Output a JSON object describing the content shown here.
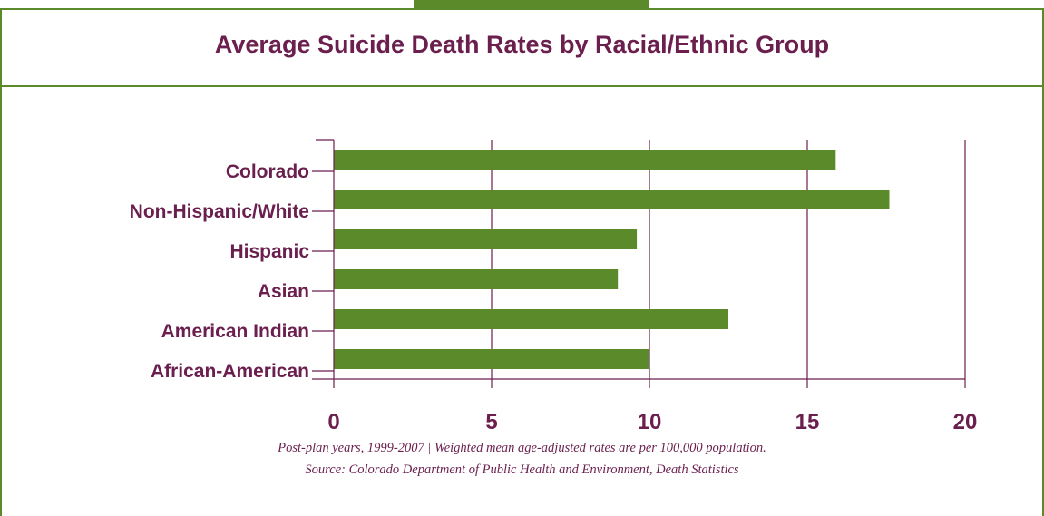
{
  "title": "Average Suicide Death Rates by Racial/Ethnic Group",
  "footnote": "Post-plan years, 1999-2007  |  Weighted mean age-adjusted rates are per 100,000 population.",
  "source": "Source: Colorado Department of Public Health and Environment, Death Statistics",
  "colors": {
    "bar": "#5a8a2a",
    "text": "#6b1f4e",
    "frame": "#5a8a2a"
  },
  "chart_data": {
    "type": "bar",
    "orientation": "horizontal",
    "categories": [
      "Colorado",
      "Non-Hispanic/White",
      "Hispanic",
      "Asian",
      "American Indian",
      "African-American"
    ],
    "values": [
      15.9,
      17.6,
      9.6,
      9.0,
      12.5,
      10.0
    ],
    "xlim": [
      0,
      20
    ],
    "xticks": [
      "0",
      "5",
      "10",
      "15",
      "20"
    ],
    "grid": "vertical",
    "legend": "none"
  }
}
